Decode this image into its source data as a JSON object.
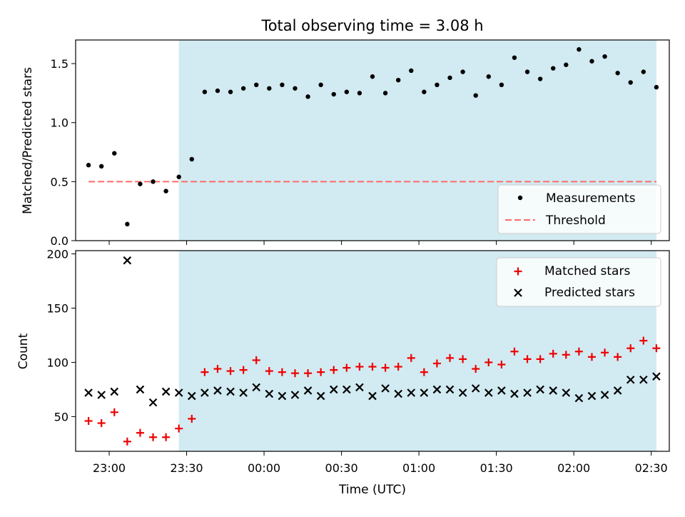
{
  "title": "Total observing time = 3.08 h",
  "colors": {
    "measurement": "#000000",
    "threshold": "#ff6b6b",
    "matched": "#ee0000",
    "predicted": "#000000",
    "observing_span": "#add8e6"
  },
  "chart_data": [
    {
      "type": "scatter",
      "panel": "top",
      "ylabel": "Matched/Predicted stars",
      "ylim": [
        0,
        1.7
      ],
      "yticks": [
        0.0,
        0.5,
        1.0,
        1.5
      ],
      "ytick_labels": [
        "0.0",
        "0.5",
        "1.0",
        "1.5"
      ],
      "xlim": [
        "22:47",
        "02:37"
      ],
      "shaded_span": [
        "23:27",
        "02:32"
      ],
      "legend": {
        "placement": "lower right",
        "entries": [
          "Measurements",
          "Threshold"
        ]
      },
      "threshold": {
        "name": "Threshold",
        "value": 0.5,
        "x": [
          "22:52",
          "02:32"
        ]
      },
      "series": [
        {
          "name": "Measurements",
          "x": [
            "22:52",
            "22:57",
            "23:02",
            "23:07",
            "23:12",
            "23:17",
            "23:22",
            "23:27",
            "23:32",
            "23:37",
            "23:42",
            "23:47",
            "23:52",
            "23:57",
            "00:02",
            "00:07",
            "00:12",
            "00:17",
            "00:22",
            "00:27",
            "00:32",
            "00:37",
            "00:42",
            "00:47",
            "00:52",
            "00:57",
            "01:02",
            "01:07",
            "01:12",
            "01:17",
            "01:22",
            "01:27",
            "01:32",
            "01:37",
            "01:42",
            "01:47",
            "01:52",
            "01:57",
            "02:02",
            "02:07",
            "02:12",
            "02:17",
            "02:22",
            "02:27",
            "02:32"
          ],
          "values": [
            0.64,
            0.63,
            0.74,
            0.14,
            0.48,
            0.5,
            0.42,
            0.54,
            0.69,
            1.26,
            1.27,
            1.26,
            1.29,
            1.32,
            1.29,
            1.32,
            1.29,
            1.22,
            1.32,
            1.24,
            1.26,
            1.25,
            1.39,
            1.25,
            1.36,
            1.44,
            1.26,
            1.32,
            1.38,
            1.43,
            1.23,
            1.39,
            1.32,
            1.55,
            1.43,
            1.37,
            1.46,
            1.49,
            1.62,
            1.52,
            1.56,
            1.42,
            1.34,
            1.43,
            1.3
          ]
        }
      ]
    },
    {
      "type": "scatter",
      "panel": "bottom",
      "ylabel": "Count",
      "xlabel": "Time (UTC)",
      "ylim": [
        18,
        203
      ],
      "yticks": [
        50,
        100,
        150,
        200
      ],
      "ytick_labels": [
        "50",
        "100",
        "150",
        "200"
      ],
      "xlim": [
        "22:47",
        "02:37"
      ],
      "xticks": [
        "23:00",
        "23:30",
        "00:00",
        "00:30",
        "01:00",
        "01:30",
        "02:00",
        "02:30"
      ],
      "shaded_span": [
        "23:27",
        "02:32"
      ],
      "legend": {
        "placement": "upper right",
        "entries": [
          "Matched stars",
          "Predicted stars"
        ]
      },
      "series": [
        {
          "name": "Matched stars",
          "x": [
            "22:52",
            "22:57",
            "23:02",
            "23:07",
            "23:12",
            "23:17",
            "23:22",
            "23:27",
            "23:32",
            "23:37",
            "23:42",
            "23:47",
            "23:52",
            "23:57",
            "00:02",
            "00:07",
            "00:12",
            "00:17",
            "00:22",
            "00:27",
            "00:32",
            "00:37",
            "00:42",
            "00:47",
            "00:52",
            "00:57",
            "01:02",
            "01:07",
            "01:12",
            "01:17",
            "01:22",
            "01:27",
            "01:32",
            "01:37",
            "01:42",
            "01:47",
            "01:52",
            "01:57",
            "02:02",
            "02:07",
            "02:12",
            "02:17",
            "02:22",
            "02:27",
            "02:32"
          ],
          "values": [
            46,
            44,
            54,
            27,
            35,
            31,
            31,
            39,
            48,
            91,
            94,
            92,
            93,
            102,
            92,
            91,
            90,
            90,
            91,
            93,
            95,
            96,
            96,
            95,
            96,
            104,
            91,
            99,
            104,
            103,
            94,
            100,
            98,
            110,
            103,
            103,
            108,
            107,
            110,
            105,
            109,
            105,
            113,
            120,
            113
          ]
        },
        {
          "name": "Predicted stars",
          "x": [
            "22:52",
            "22:57",
            "23:02",
            "23:07",
            "23:12",
            "23:17",
            "23:22",
            "23:27",
            "23:32",
            "23:37",
            "23:42",
            "23:47",
            "23:52",
            "23:57",
            "00:02",
            "00:07",
            "00:12",
            "00:17",
            "00:22",
            "00:27",
            "00:32",
            "00:37",
            "00:42",
            "00:47",
            "00:52",
            "00:57",
            "01:02",
            "01:07",
            "01:12",
            "01:17",
            "01:22",
            "01:27",
            "01:32",
            "01:37",
            "01:42",
            "01:47",
            "01:52",
            "01:57",
            "02:02",
            "02:07",
            "02:12",
            "02:17",
            "02:22",
            "02:27",
            "02:32"
          ],
          "values": [
            72,
            70,
            73,
            194,
            75,
            63,
            73,
            72,
            69,
            72,
            74,
            73,
            72,
            77,
            71,
            69,
            70,
            74,
            69,
            75,
            75,
            77,
            69,
            76,
            71,
            72,
            72,
            75,
            75,
            72,
            76,
            72,
            74,
            71,
            72,
            75,
            74,
            72,
            67,
            69,
            70,
            74,
            84,
            84,
            87
          ]
        }
      ]
    }
  ]
}
